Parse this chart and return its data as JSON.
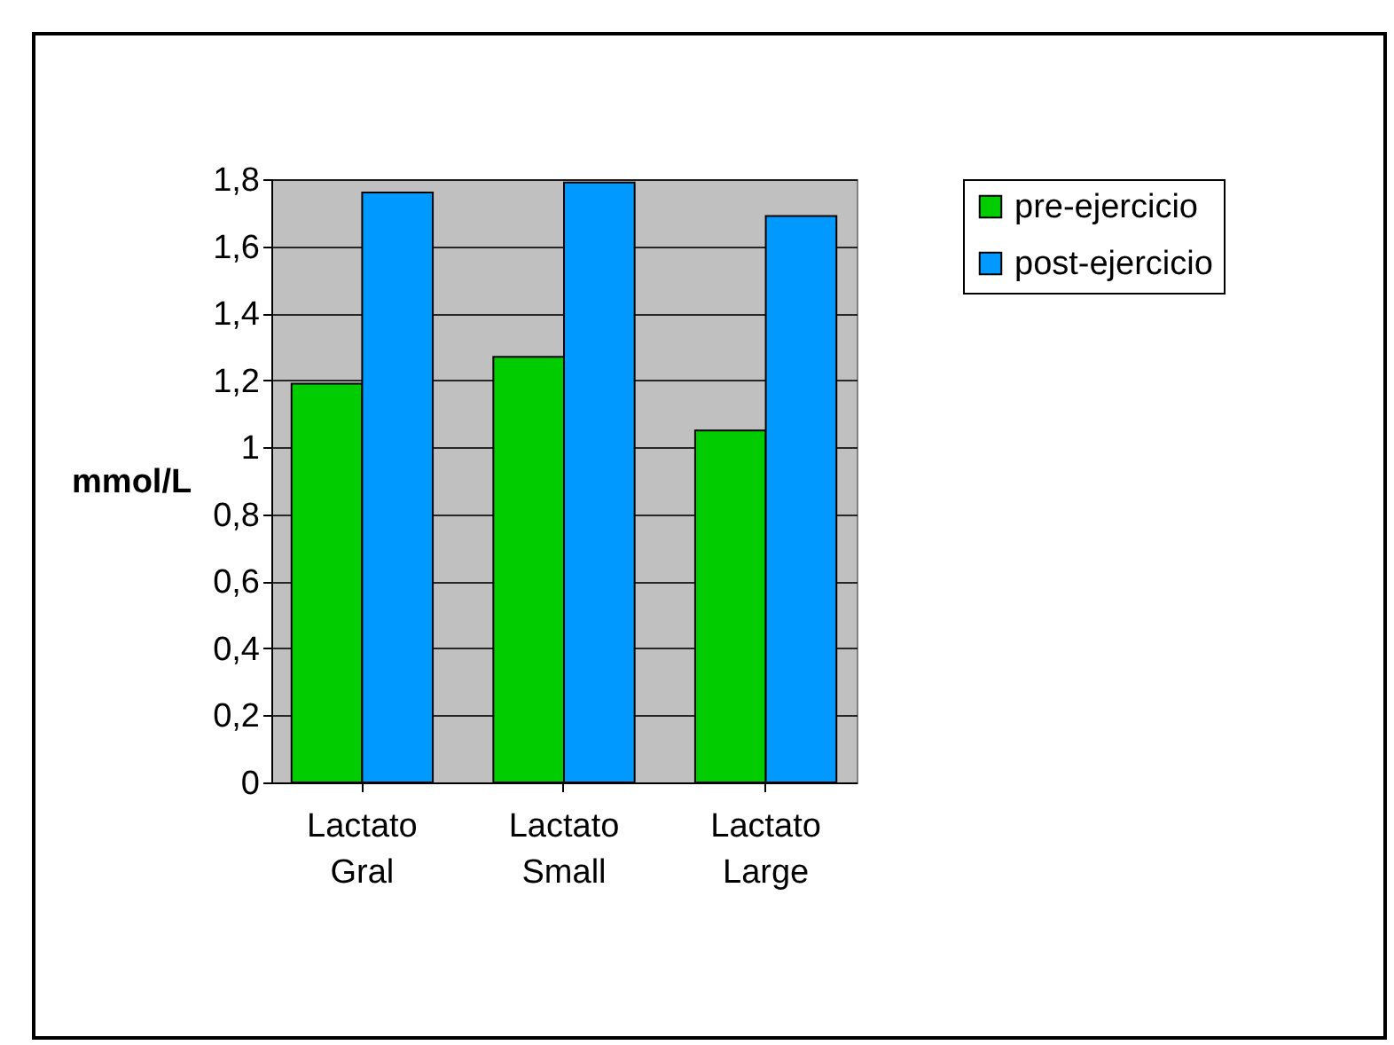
{
  "chart_data": {
    "type": "bar",
    "ylabel": "mmol/L",
    "categories": [
      "Lactato Gral",
      "Lactato Small",
      "Lactato Large"
    ],
    "series": [
      {
        "name": "pre-ejercicio",
        "color": "#00cc00",
        "values": [
          1.19,
          1.27,
          1.05
        ]
      },
      {
        "name": "post-ejercicio",
        "color": "#0099ff",
        "values": [
          1.76,
          1.79,
          1.69
        ]
      }
    ],
    "ylim": [
      0,
      1.8
    ],
    "yticks": [
      0,
      {
        "value": 0.2,
        "label": "0,2"
      },
      {
        "value": 0.4,
        "label": "0,4"
      },
      {
        "value": 0.6,
        "label": "0,6"
      },
      {
        "value": 0.8,
        "label": "0,8"
      },
      1,
      {
        "value": 1.2,
        "label": "1,2"
      },
      {
        "value": 1.4,
        "label": "1,4"
      },
      {
        "value": 1.6,
        "label": "1,6"
      },
      {
        "value": 1.8,
        "label": "1,8"
      }
    ],
    "grid": "y",
    "legend": "right"
  }
}
